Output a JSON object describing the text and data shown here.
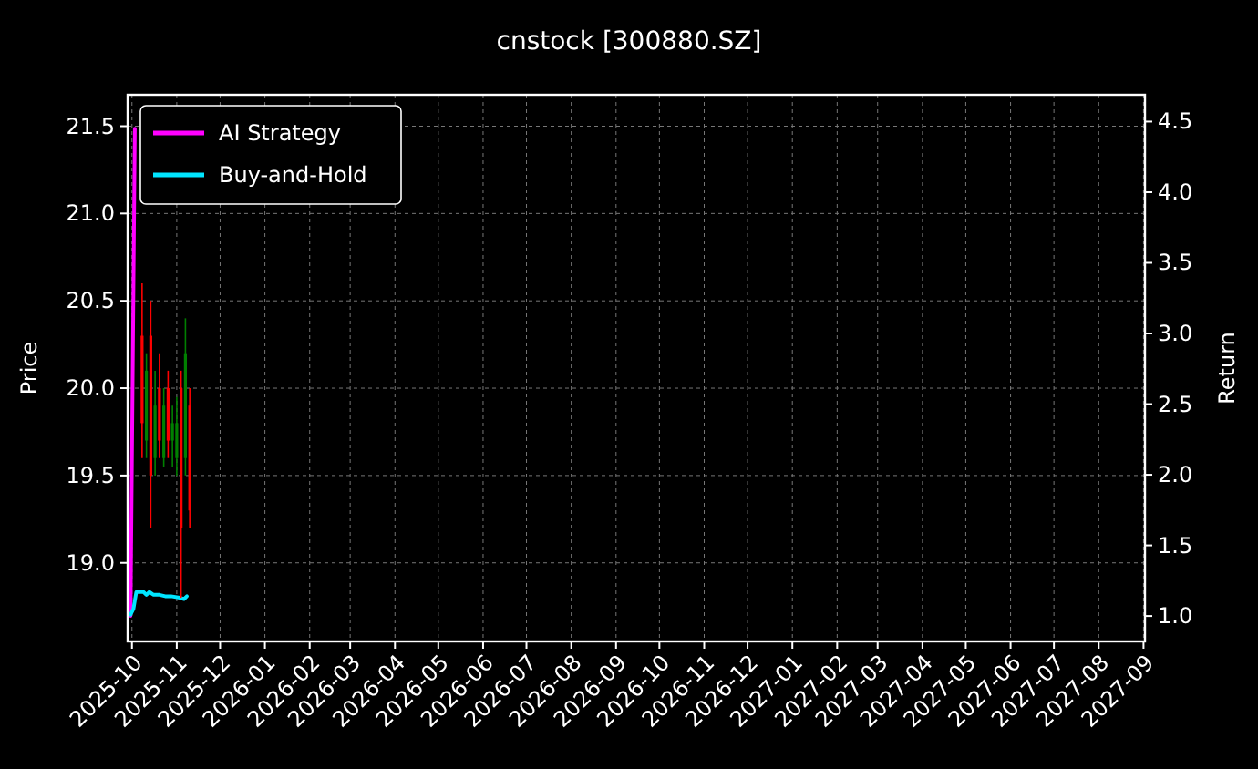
{
  "chart_data": {
    "type": "candlestick",
    "title": "cnstock [300880.SZ]",
    "ylabel": "Price",
    "y2label": "Return",
    "xlim": [
      "2025-09-28",
      "2027-09-02"
    ],
    "xticks": [
      "2025-10",
      "2025-11",
      "2025-12",
      "2026-01",
      "2026-02",
      "2026-03",
      "2026-04",
      "2026-05",
      "2026-06",
      "2026-07",
      "2026-08",
      "2026-09",
      "2026-10",
      "2026-11",
      "2026-12",
      "2027-01",
      "2027-02",
      "2027-03",
      "2027-04",
      "2027-05",
      "2027-06",
      "2027-07",
      "2027-08",
      "2027-09"
    ],
    "ylim": [
      18.55,
      21.68
    ],
    "yticks": [
      {
        "value": 19,
        "label": "19.0"
      },
      19.5,
      {
        "value": 20,
        "label": "20.0"
      },
      20.5,
      {
        "value": 21,
        "label": "21.0"
      },
      21.5
    ],
    "y2lim": [
      0.82,
      4.69
    ],
    "y2ticks": [
      {
        "value": 1,
        "label": "1.0"
      },
      1.5,
      {
        "value": 2,
        "label": "2.0"
      },
      2.5,
      {
        "value": 3,
        "label": "3.0"
      },
      3.5,
      {
        "value": 4,
        "label": "4.0"
      },
      4.5
    ],
    "grid": true,
    "legend": "top left",
    "series": [
      {
        "type": "line",
        "name": "AI Strategy",
        "color": "#ff00ff",
        "axis": "y2",
        "x": [
          "2025-09-30",
          "2025-10-03"
        ],
        "values": [
          1.0,
          4.45
        ]
      },
      {
        "type": "line",
        "name": "Buy-and-Hold",
        "color": "#00e5ff",
        "axis": "y2",
        "x": [
          "2025-09-30",
          "2025-10-02",
          "2025-10-04",
          "2025-10-09",
          "2025-10-11",
          "2025-10-13",
          "2025-10-16",
          "2025-10-20",
          "2025-10-24",
          "2025-10-28",
          "2025-11-03",
          "2025-11-06",
          "2025-11-08"
        ],
        "values": [
          1.01,
          1.05,
          1.17,
          1.17,
          1.15,
          1.17,
          1.15,
          1.15,
          1.14,
          1.14,
          1.13,
          1.12,
          1.14
        ]
      },
      {
        "x": [
          "2025-10-08",
          "2025-10-11",
          "2025-10-14",
          "2025-10-17",
          "2025-10-20",
          "2025-10-23",
          "2025-10-26",
          "2025-10-29",
          "2025-11-01",
          "2025-11-04",
          "2025-11-07",
          "2025-11-10"
        ],
        "ohlc": [
          [
            20.3,
            20.6,
            19.6,
            19.8
          ],
          [
            19.7,
            20.2,
            19.6,
            20.1
          ],
          [
            20.3,
            20.5,
            19.2,
            19.5
          ],
          [
            19.6,
            20.1,
            19.5,
            19.9
          ],
          [
            20.0,
            20.2,
            19.6,
            19.7
          ],
          [
            19.6,
            20.0,
            19.55,
            19.9
          ],
          [
            20.0,
            20.1,
            19.6,
            19.7
          ],
          [
            19.7,
            19.9,
            19.55,
            19.8
          ],
          [
            19.6,
            19.95,
            19.5,
            19.8
          ],
          [
            20.0,
            20.1,
            18.8,
            19.2
          ],
          [
            19.6,
            20.4,
            19.5,
            20.2
          ],
          [
            19.9,
            20.0,
            19.2,
            19.3
          ]
        ],
        "colors": [
          "#ff0000",
          "#008000",
          "#ff0000",
          "#008000",
          "#ff0000",
          "#008000",
          "#ff0000",
          "#008000",
          "#008000",
          "#ff0000",
          "#008000",
          "#ff0000"
        ]
      }
    ]
  }
}
